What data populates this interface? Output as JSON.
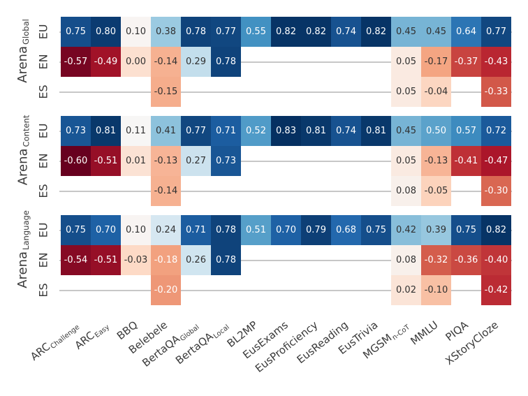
{
  "figure": {
    "background": "#ffffff",
    "label_color": "#3a3a3a",
    "missing_cell_line_color": "#c7c7c7",
    "cell_text_light": "#ffffff",
    "cell_text_dark": "#303030"
  },
  "chart_data": {
    "type": "heatmap",
    "row_labels": [
      "EU",
      "EN",
      "ES"
    ],
    "columns": [
      {
        "label": "ARC",
        "sub": "Challenge"
      },
      {
        "label": "ARC",
        "sub": "Easy"
      },
      {
        "label": "BBQ",
        "sub": ""
      },
      {
        "label": "Belebele",
        "sub": ""
      },
      {
        "label": "BertaQA",
        "sub": "Global"
      },
      {
        "label": "BertaQA",
        "sub": "Local"
      },
      {
        "label": "BL2MP",
        "sub": ""
      },
      {
        "label": "EusExams",
        "sub": ""
      },
      {
        "label": "EusProficiency",
        "sub": ""
      },
      {
        "label": "EusReading",
        "sub": ""
      },
      {
        "label": "EusTrivia",
        "sub": ""
      },
      {
        "label": "MGSM",
        "sub": "n-CoT"
      },
      {
        "label": "MMLU",
        "sub": ""
      },
      {
        "label": "PIQA",
        "sub": ""
      },
      {
        "label": "XStoryCloze",
        "sub": ""
      }
    ],
    "groups": [
      {
        "title": "Arena",
        "subtitle": "Global",
        "rows": [
          [
            0.75,
            0.8,
            0.1,
            0.38,
            0.78,
            0.77,
            0.55,
            0.82,
            0.82,
            0.74,
            0.82,
            0.45,
            0.45,
            0.64,
            0.77
          ],
          [
            -0.57,
            -0.49,
            0.0,
            -0.14,
            0.29,
            0.78,
            null,
            null,
            null,
            null,
            null,
            0.05,
            -0.17,
            -0.37,
            -0.43
          ],
          [
            null,
            null,
            null,
            -0.15,
            null,
            null,
            null,
            null,
            null,
            null,
            null,
            0.05,
            -0.04,
            null,
            -0.33
          ]
        ]
      },
      {
        "title": "Arena",
        "subtitle": "Content",
        "rows": [
          [
            0.73,
            0.81,
            0.11,
            0.41,
            0.77,
            0.71,
            0.52,
            0.83,
            0.81,
            0.74,
            0.81,
            0.45,
            0.5,
            0.57,
            0.72
          ],
          [
            -0.6,
            -0.51,
            0.01,
            -0.13,
            0.27,
            0.73,
            null,
            null,
            null,
            null,
            null,
            0.05,
            -0.13,
            -0.41,
            -0.47
          ],
          [
            null,
            null,
            null,
            -0.14,
            null,
            null,
            null,
            null,
            null,
            null,
            null,
            0.08,
            -0.05,
            null,
            -0.3
          ]
        ]
      },
      {
        "title": "Arena",
        "subtitle": "Language",
        "rows": [
          [
            0.75,
            0.7,
            0.1,
            0.24,
            0.71,
            0.78,
            0.51,
            0.7,
            0.79,
            0.68,
            0.75,
            0.42,
            0.39,
            0.75,
            0.82
          ],
          [
            -0.54,
            -0.51,
            -0.03,
            -0.18,
            0.26,
            0.78,
            null,
            null,
            null,
            null,
            null,
            0.08,
            -0.32,
            -0.36,
            -0.4
          ],
          [
            null,
            null,
            null,
            -0.2,
            null,
            null,
            null,
            null,
            null,
            null,
            null,
            0.02,
            -0.1,
            null,
            -0.42
          ]
        ]
      }
    ],
    "color_scale": {
      "palette": "RdBu",
      "anchors": [
        "#67001f",
        "#b2182b",
        "#d6604d",
        "#f4a582",
        "#fddbc7",
        "#f7f7f7",
        "#d1e5f0",
        "#92c5de",
        "#4393c3",
        "#2166ac",
        "#053061"
      ],
      "vmin": -0.6,
      "vmax": 0.83
    },
    "value_format": "2dp"
  }
}
